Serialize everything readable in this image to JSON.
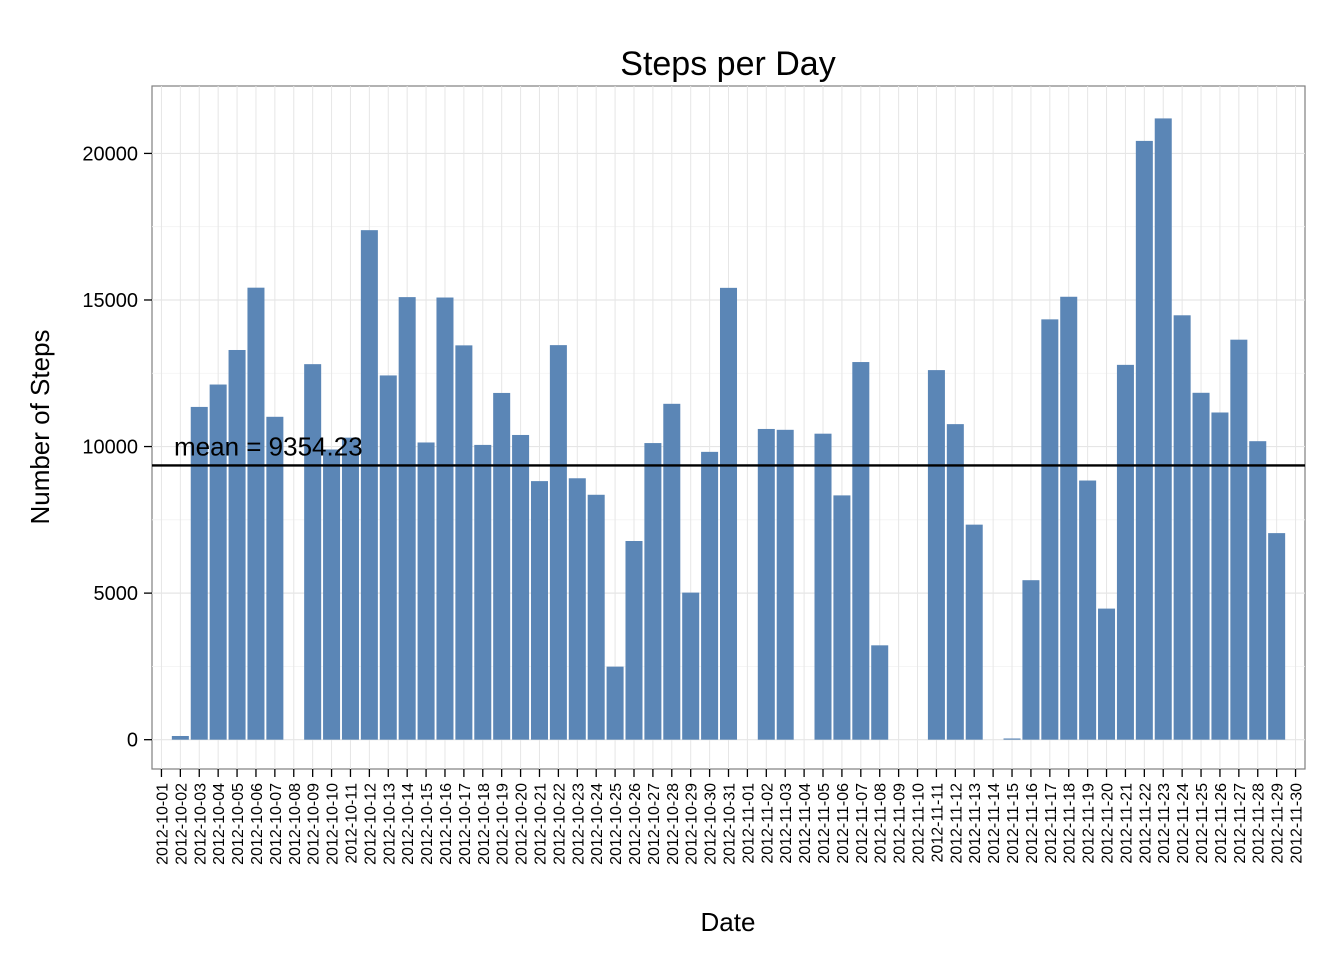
{
  "chart_data": {
    "type": "bar",
    "title": "Steps per Day",
    "xlabel": "Date",
    "ylabel": "Number of Steps",
    "ylim": [
      -1000,
      22300
    ],
    "yticks": [
      0,
      5000,
      10000,
      15000,
      20000
    ],
    "grid": true,
    "bar_color": "#5b86b6",
    "categories": [
      "2012-10-01",
      "2012-10-02",
      "2012-10-03",
      "2012-10-04",
      "2012-10-05",
      "2012-10-06",
      "2012-10-07",
      "2012-10-08",
      "2012-10-09",
      "2012-10-10",
      "2012-10-11",
      "2012-10-12",
      "2012-10-13",
      "2012-10-14",
      "2012-10-15",
      "2012-10-16",
      "2012-10-17",
      "2012-10-18",
      "2012-10-19",
      "2012-10-20",
      "2012-10-21",
      "2012-10-22",
      "2012-10-23",
      "2012-10-24",
      "2012-10-25",
      "2012-10-26",
      "2012-10-27",
      "2012-10-28",
      "2012-10-29",
      "2012-10-30",
      "2012-10-31",
      "2012-11-01",
      "2012-11-02",
      "2012-11-03",
      "2012-11-04",
      "2012-11-05",
      "2012-11-06",
      "2012-11-07",
      "2012-11-08",
      "2012-11-09",
      "2012-11-10",
      "2012-11-11",
      "2012-11-12",
      "2012-11-13",
      "2012-11-14",
      "2012-11-15",
      "2012-11-16",
      "2012-11-17",
      "2012-11-18",
      "2012-11-19",
      "2012-11-20",
      "2012-11-21",
      "2012-11-22",
      "2012-11-23",
      "2012-11-24",
      "2012-11-25",
      "2012-11-26",
      "2012-11-27",
      "2012-11-28",
      "2012-11-29",
      "2012-11-30"
    ],
    "values": [
      0,
      126,
      11352,
      12116,
      13294,
      15420,
      11015,
      0,
      12811,
      9900,
      10304,
      17382,
      12426,
      15098,
      10139,
      15084,
      13452,
      10056,
      11829,
      10395,
      8821,
      13460,
      8918,
      8355,
      2492,
      6778,
      10119,
      11458,
      5018,
      9819,
      15414,
      0,
      10600,
      10571,
      0,
      10439,
      8334,
      12883,
      3219,
      0,
      0,
      12608,
      10765,
      7336,
      0,
      41,
      5441,
      14339,
      15110,
      8841,
      4472,
      12787,
      20427,
      21194,
      14478,
      11834,
      11162,
      13646,
      10183,
      7047,
      0
    ],
    "mean_line": {
      "value": 9354.23,
      "label": "mean = 9354.23"
    }
  }
}
